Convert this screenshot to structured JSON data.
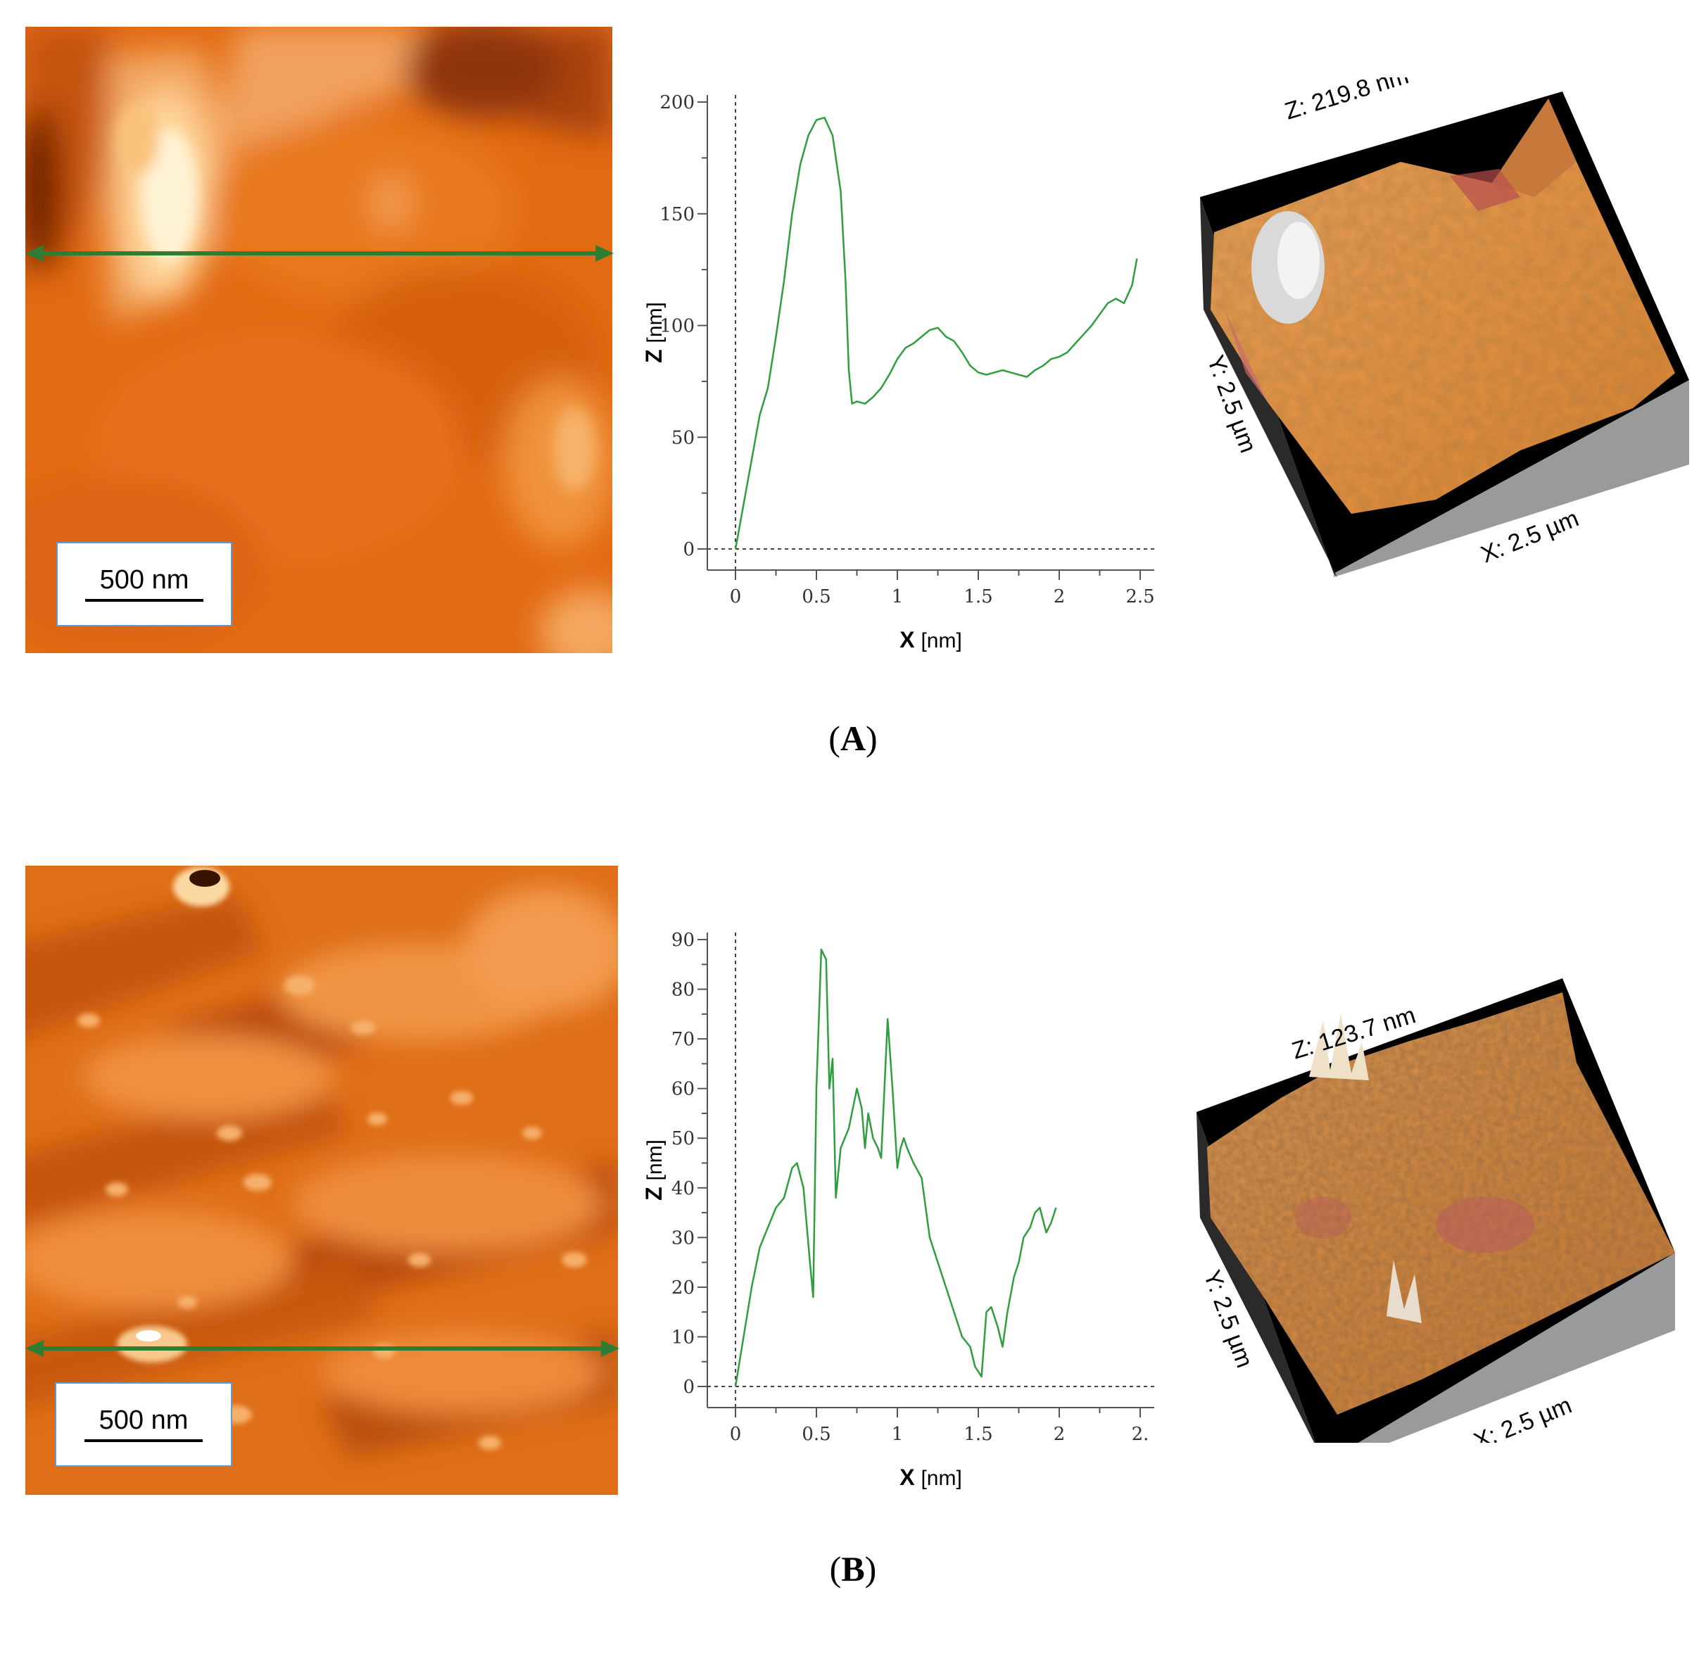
{
  "panels": [
    {
      "id": "A",
      "label": "A",
      "scale_bar_text": "500 nm",
      "perspective": {
        "z": "Z: 219.8 nm",
        "y": "Y: 2.5 µm",
        "x": "X: 2.5 µm"
      },
      "line_color": "#2e7d32",
      "profile_color": "#2f9e3e"
    },
    {
      "id": "B",
      "label": "B",
      "scale_bar_text": "500 nm",
      "perspective": {
        "z": "Z: 123.7 nm",
        "y": "Y: 2.5 µm",
        "x": "X: 2.5 µm"
      },
      "line_color": "#2e7d32",
      "profile_color": "#2f9e3e"
    }
  ],
  "chart_data": [
    {
      "type": "line",
      "xlabel": "X",
      "xunit": "[nm]",
      "ylabel": "Z",
      "yunit": "[nm]",
      "xlim": [
        0,
        2.5
      ],
      "ylim": [
        0,
        200
      ],
      "xticks": [
        "0",
        "0.5",
        "1",
        "1.5",
        "2",
        "2.5"
      ],
      "yticks": [
        "0",
        "50",
        "100",
        "150",
        "200"
      ],
      "grid": false,
      "series": [
        {
          "x": [
            0,
            0.05,
            0.1,
            0.15,
            0.2,
            0.25,
            0.3,
            0.35,
            0.4,
            0.45,
            0.5,
            0.55,
            0.6,
            0.65,
            0.68,
            0.7,
            0.72,
            0.75,
            0.8,
            0.85,
            0.9,
            0.95,
            1.0,
            1.05,
            1.1,
            1.15,
            1.2,
            1.25,
            1.3,
            1.35,
            1.4,
            1.45,
            1.5,
            1.55,
            1.6,
            1.65,
            1.7,
            1.75,
            1.8,
            1.85,
            1.9,
            1.95,
            2.0,
            2.05,
            2.1,
            2.15,
            2.2,
            2.25,
            2.3,
            2.35,
            2.4,
            2.45,
            2.48
          ],
          "y": [
            0,
            20,
            40,
            60,
            72,
            95,
            120,
            150,
            172,
            185,
            192,
            193,
            185,
            160,
            120,
            80,
            65,
            66,
            65,
            68,
            72,
            78,
            85,
            90,
            92,
            95,
            98,
            99,
            95,
            93,
            88,
            82,
            79,
            78,
            79,
            80,
            79,
            78,
            77,
            80,
            82,
            85,
            86,
            88,
            92,
            96,
            100,
            105,
            110,
            112,
            110,
            118,
            130
          ]
        }
      ]
    },
    {
      "type": "line",
      "xlabel": "X",
      "xunit": "[nm]",
      "ylabel": "Z",
      "yunit": "[nm]",
      "xlim": [
        0,
        2.5
      ],
      "ylim": [
        0,
        90
      ],
      "xticks": [
        "0",
        "0.5",
        "1",
        "1.5",
        "2",
        "2."
      ],
      "yticks": [
        "0",
        "10",
        "20",
        "30",
        "40",
        "50",
        "60",
        "70",
        "80",
        "90"
      ],
      "grid": false,
      "series": [
        {
          "x": [
            0,
            0.05,
            0.1,
            0.15,
            0.2,
            0.25,
            0.3,
            0.35,
            0.38,
            0.42,
            0.46,
            0.48,
            0.5,
            0.53,
            0.56,
            0.58,
            0.6,
            0.62,
            0.65,
            0.7,
            0.75,
            0.78,
            0.8,
            0.82,
            0.85,
            0.88,
            0.9,
            0.94,
            0.97,
            1.0,
            1.02,
            1.04,
            1.06,
            1.1,
            1.15,
            1.2,
            1.25,
            1.3,
            1.35,
            1.4,
            1.45,
            1.48,
            1.52,
            1.55,
            1.58,
            1.62,
            1.65,
            1.68,
            1.72,
            1.75,
            1.78,
            1.82,
            1.85,
            1.88,
            1.92,
            1.95,
            1.98
          ],
          "y": [
            0,
            10,
            20,
            28,
            32,
            36,
            38,
            44,
            45,
            40,
            25,
            18,
            60,
            88,
            86,
            60,
            66,
            38,
            48,
            52,
            60,
            56,
            48,
            55,
            50,
            48,
            46,
            74,
            60,
            44,
            48,
            50,
            48,
            45,
            42,
            30,
            25,
            20,
            15,
            10,
            8,
            4,
            2,
            15,
            16,
            12,
            8,
            15,
            22,
            25,
            30,
            32,
            35,
            36,
            31,
            33,
            36
          ]
        }
      ]
    }
  ]
}
